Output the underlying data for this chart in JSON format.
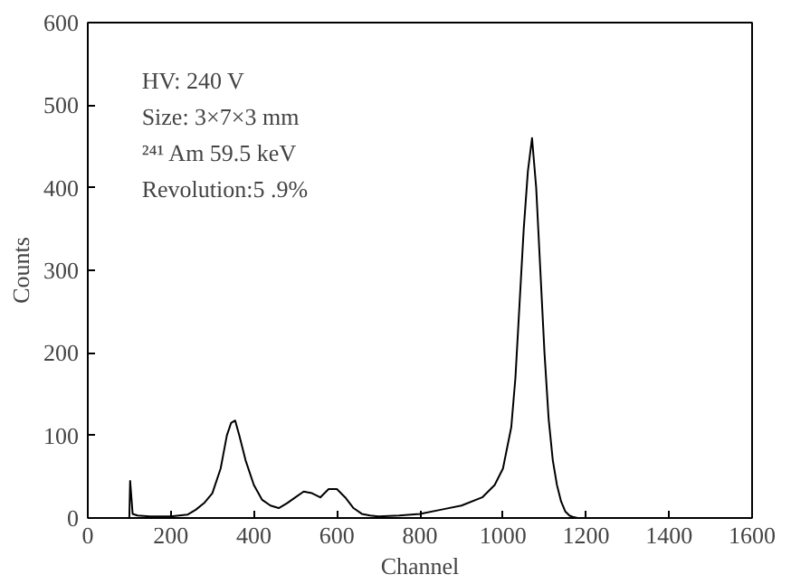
{
  "chart_data": {
    "type": "line",
    "xlabel": "Channel",
    "ylabel": "Counts",
    "xlim": [
      0,
      1600
    ],
    "ylim": [
      0,
      600
    ],
    "xticks": [
      0,
      200,
      400,
      600,
      800,
      1000,
      1200,
      1400,
      1600
    ],
    "yticks": [
      0,
      100,
      200,
      300,
      400,
      500,
      600
    ],
    "grid": false,
    "marker": "none",
    "line_style": "solid",
    "annotations": [
      "HV: 240 V",
      "Size: 3×7×3 mm",
      "²⁴¹ Am 59.5 keV",
      "Revolution:5 .9%"
    ],
    "series": [
      {
        "color": "#000000",
        "x": [
          100,
          102,
          108,
          120,
          150,
          200,
          240,
          260,
          280,
          300,
          320,
          335,
          345,
          355,
          365,
          380,
          400,
          420,
          440,
          460,
          480,
          500,
          520,
          540,
          560,
          580,
          600,
          620,
          640,
          660,
          680,
          700,
          750,
          800,
          850,
          900,
          950,
          980,
          1000,
          1020,
          1030,
          1040,
          1050,
          1060,
          1065,
          1070,
          1075,
          1080,
          1090,
          1100,
          1110,
          1120,
          1130,
          1140,
          1150,
          1160,
          1170,
          1180
        ],
        "values": [
          0,
          45,
          5,
          3,
          2,
          2,
          4,
          10,
          18,
          30,
          60,
          100,
          115,
          118,
          100,
          70,
          40,
          22,
          15,
          12,
          18,
          25,
          32,
          30,
          25,
          35,
          35,
          25,
          12,
          5,
          3,
          2,
          3,
          5,
          10,
          15,
          25,
          40,
          60,
          110,
          170,
          260,
          350,
          420,
          440,
          460,
          430,
          400,
          300,
          200,
          120,
          70,
          40,
          20,
          8,
          3,
          1,
          0
        ]
      }
    ]
  }
}
